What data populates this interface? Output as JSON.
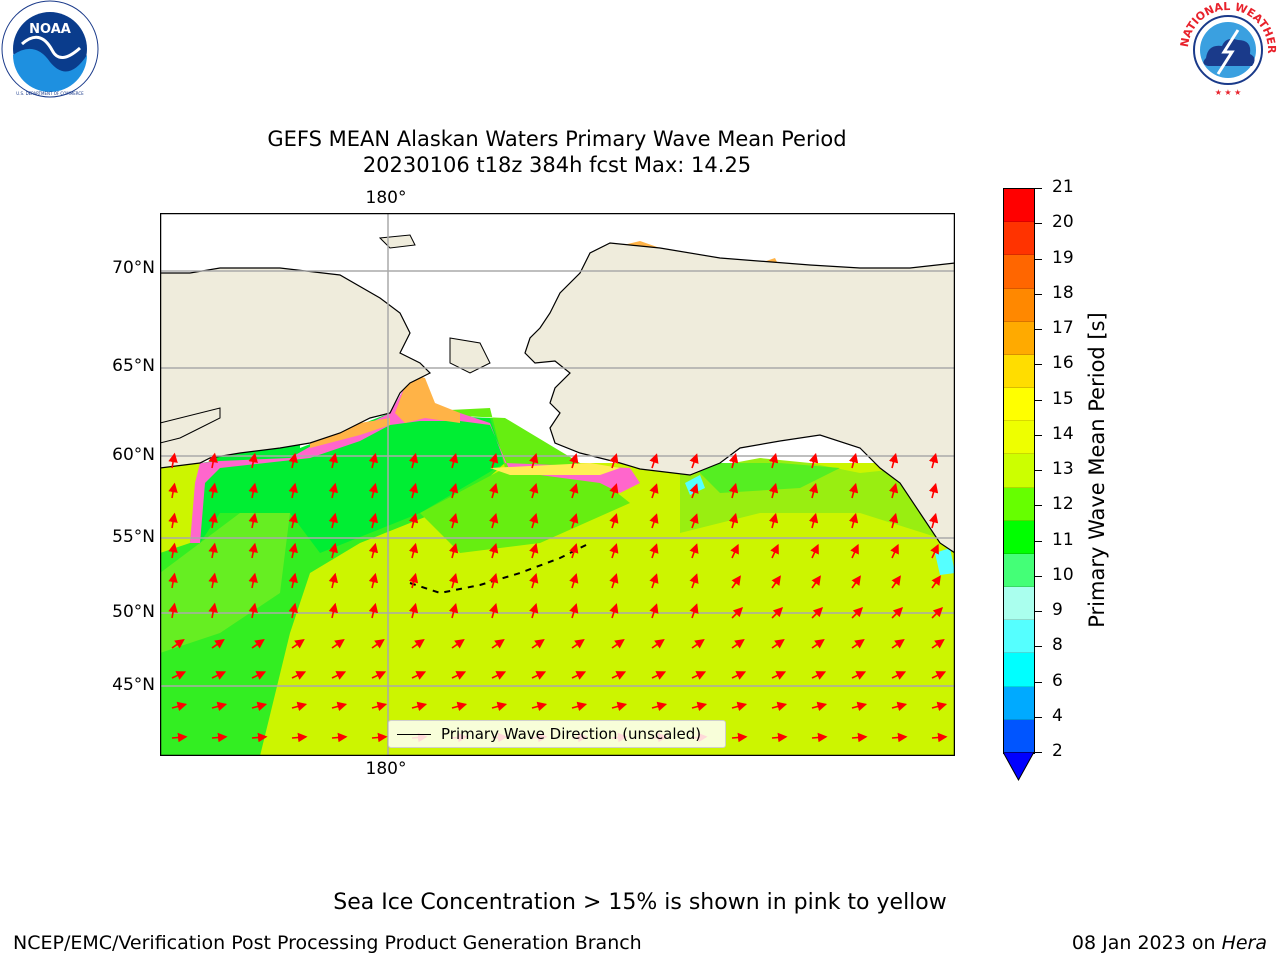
{
  "title": {
    "line1": "GEFS MEAN Alaskan Waters Primary Wave Mean Period",
    "line2": "20230106 t18z 384h fcst   Max: 14.25"
  },
  "logos": {
    "left": {
      "name": "noaa-logo",
      "text": "NOAA",
      "ring_text": "NATIONAL OCEANIC AND ATMOSPHERIC ADMINISTRATION · U.S. DEPARTMENT OF COMMERCE"
    },
    "right": {
      "name": "nws-logo",
      "ring_text": "NATIONAL WEATHER SERVICE"
    }
  },
  "map": {
    "lat_labels": [
      "70°N",
      "65°N",
      "60°N",
      "55°N",
      "50°N",
      "45°N"
    ],
    "lon_label_top": "180°",
    "lon_label_bottom": "180°",
    "legend_label": "Primary Wave Direction (unscaled)",
    "colors": {
      "land": "#efecdc",
      "ice_pink": "#ff66cc",
      "ice_orange": "#ffb347",
      "ice_yellow": "#ffee55",
      "arrow": "#ff0000"
    }
  },
  "colorbar": {
    "label": "Primary Wave Mean Period [s]",
    "ticks": [
      "21",
      "20",
      "19",
      "18",
      "17",
      "16",
      "15",
      "14",
      "13",
      "12",
      "11",
      "10",
      "9",
      "8",
      "6",
      "4",
      "2"
    ],
    "colors": [
      "#ff0000",
      "#ff3300",
      "#ff6600",
      "#ff8800",
      "#ffaa00",
      "#ffdd00",
      "#ffff00",
      "#eeff00",
      "#ccff00",
      "#66ff00",
      "#00ff00",
      "#44ff77",
      "#aaffee",
      "#55ffff",
      "#00ffff",
      "#00aaff",
      "#0055ff"
    ],
    "extend_color": "#0000ff"
  },
  "footer": {
    "note": "Sea Ice Concentration > 15% is shown in pink to yellow",
    "org": "NCEP/EMC/Verification Post Processing Product Generation Branch",
    "date": "08 Jan 2023 on ",
    "host": "Hera"
  }
}
